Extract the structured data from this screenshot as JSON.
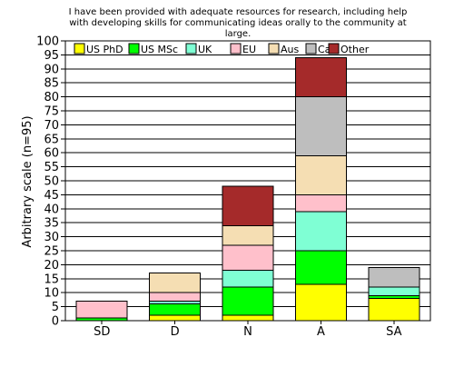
{
  "chart_data": {
    "type": "bar",
    "stacked": true,
    "title_lines": [
      "I have been provided with adequate resources for research, including help",
      "with developing skills for communicating ideas orally to the community at",
      "large."
    ],
    "xlabel": "",
    "ylabel": "Arbitrary scale (n=95)",
    "ylim": [
      0,
      100
    ],
    "ytick_step": 5,
    "grid": true,
    "legend_position": "top, inside plot",
    "categories": [
      "SD",
      "D",
      "N",
      "A",
      "SA"
    ],
    "series": [
      {
        "name": "US PhD",
        "color": "#ffff00",
        "values": [
          0,
          2,
          2,
          13,
          8
        ]
      },
      {
        "name": "US MSc",
        "color": "#00ff00",
        "values": [
          1,
          4,
          10,
          12,
          1
        ]
      },
      {
        "name": "UK",
        "color": "#7fffd4",
        "values": [
          0,
          1,
          6,
          14,
          3
        ]
      },
      {
        "name": "EU",
        "color": "#ffc0cb",
        "values": [
          6,
          3,
          9,
          6,
          0
        ]
      },
      {
        "name": "Aus",
        "color": "#f5deb3",
        "values": [
          0,
          7,
          7,
          14,
          0
        ]
      },
      {
        "name": "Ca",
        "color": "#bebebe",
        "values": [
          0,
          0,
          0,
          21,
          7
        ]
      },
      {
        "name": "Other",
        "color": "#a52a2a",
        "values": [
          0,
          0,
          14,
          14,
          0
        ]
      }
    ]
  }
}
